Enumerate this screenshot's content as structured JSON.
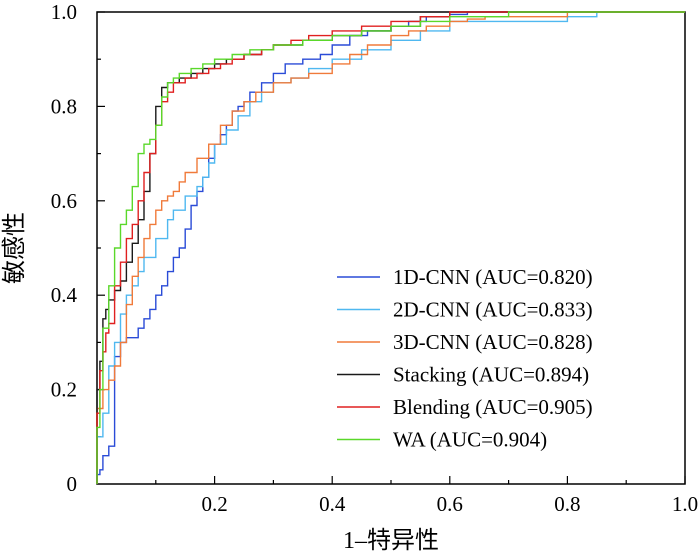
{
  "chart_data": {
    "type": "line",
    "title": "",
    "xlabel": "1–特异性",
    "ylabel": "敏感性",
    "xlim": [
      0,
      1
    ],
    "ylim": [
      0,
      1
    ],
    "x_ticks": [
      "0.2",
      "0.4",
      "0.6",
      "0.8",
      "1.0"
    ],
    "y_ticks": [
      "0",
      "0.2",
      "0.4",
      "0.6",
      "0.8",
      "1.0"
    ],
    "grid": false,
    "legend_position": "bottom-right",
    "series": [
      {
        "name": "1D-CNN (AUC=0.820)",
        "color": "#2a4bd7",
        "x": [
          0,
          0.005,
          0.01,
          0.01,
          0.02,
          0.03,
          0.03,
          0.04,
          0.05,
          0.06,
          0.07,
          0.08,
          0.09,
          0.1,
          0.11,
          0.12,
          0.13,
          0.14,
          0.15,
          0.16,
          0.17,
          0.18,
          0.19,
          0.2,
          0.21,
          0.22,
          0.23,
          0.24,
          0.25,
          0.26,
          0.28,
          0.3,
          0.32,
          0.35,
          0.38,
          0.4,
          0.43,
          0.46,
          0.5,
          0.53,
          0.56,
          0.6,
          0.63,
          0.66,
          0.7,
          0.8,
          0.9,
          1.0
        ],
        "y": [
          0,
          0.02,
          0.03,
          0.05,
          0.06,
          0.08,
          0.15,
          0.27,
          0.3,
          0.31,
          0.31,
          0.33,
          0.35,
          0.37,
          0.4,
          0.42,
          0.45,
          0.48,
          0.5,
          0.54,
          0.59,
          0.62,
          0.65,
          0.69,
          0.72,
          0.74,
          0.76,
          0.79,
          0.8,
          0.81,
          0.83,
          0.85,
          0.87,
          0.89,
          0.9,
          0.91,
          0.93,
          0.95,
          0.96,
          0.97,
          0.98,
          0.99,
          0.995,
          1.0,
          1.0,
          1.0,
          1.0,
          1.0
        ]
      },
      {
        "name": "2D-CNN (AUC=0.833)",
        "color": "#4fb8f0",
        "x": [
          0,
          0.01,
          0.02,
          0.03,
          0.04,
          0.05,
          0.06,
          0.07,
          0.08,
          0.1,
          0.12,
          0.13,
          0.15,
          0.17,
          0.18,
          0.19,
          0.2,
          0.22,
          0.24,
          0.26,
          0.28,
          0.3,
          0.33,
          0.36,
          0.4,
          0.45,
          0.5,
          0.55,
          0.6,
          0.7,
          0.8,
          0.85,
          0.9,
          1.0
        ],
        "y": [
          0,
          0.1,
          0.15,
          0.25,
          0.3,
          0.36,
          0.4,
          0.42,
          0.45,
          0.48,
          0.52,
          0.56,
          0.58,
          0.61,
          0.63,
          0.65,
          0.68,
          0.72,
          0.75,
          0.78,
          0.81,
          0.83,
          0.85,
          0.86,
          0.88,
          0.9,
          0.92,
          0.94,
          0.96,
          0.98,
          0.98,
          0.99,
          1.0,
          1.0
        ]
      },
      {
        "name": "3D-CNN (AUC=0.828)",
        "color": "#f07a3a",
        "x": [
          0,
          0.01,
          0.02,
          0.03,
          0.04,
          0.05,
          0.06,
          0.07,
          0.08,
          0.09,
          0.1,
          0.11,
          0.12,
          0.13,
          0.14,
          0.15,
          0.17,
          0.19,
          0.21,
          0.23,
          0.25,
          0.27,
          0.3,
          0.33,
          0.36,
          0.4,
          0.43,
          0.46,
          0.5,
          0.53,
          0.56,
          0.6,
          0.63,
          0.66,
          0.7,
          0.8,
          0.88,
          1.0
        ],
        "y": [
          0,
          0.16,
          0.2,
          0.22,
          0.25,
          0.3,
          0.38,
          0.44,
          0.48,
          0.52,
          0.55,
          0.58,
          0.6,
          0.61,
          0.62,
          0.64,
          0.66,
          0.69,
          0.72,
          0.76,
          0.79,
          0.81,
          0.83,
          0.85,
          0.86,
          0.87,
          0.89,
          0.91,
          0.93,
          0.95,
          0.96,
          0.97,
          0.98,
          0.985,
          0.99,
          0.99,
          1.0,
          1.0
        ]
      },
      {
        "name": "Stacking (AUC=0.894)",
        "color": "#1a1a1a",
        "x": [
          0,
          0.005,
          0.01,
          0.015,
          0.02,
          0.03,
          0.04,
          0.05,
          0.06,
          0.07,
          0.08,
          0.09,
          0.1,
          0.11,
          0.12,
          0.14,
          0.16,
          0.18,
          0.2,
          0.22,
          0.25,
          0.28,
          0.3,
          0.35,
          0.4,
          0.45,
          0.5,
          0.55,
          0.6,
          0.7,
          0.8,
          1.0
        ],
        "y": [
          0,
          0.2,
          0.26,
          0.35,
          0.37,
          0.39,
          0.41,
          0.43,
          0.47,
          0.51,
          0.56,
          0.62,
          0.7,
          0.8,
          0.84,
          0.85,
          0.86,
          0.87,
          0.88,
          0.89,
          0.9,
          0.91,
          0.92,
          0.93,
          0.94,
          0.95,
          0.96,
          0.97,
          0.99,
          1.0,
          1.0,
          1.0
        ]
      },
      {
        "name": "Blending (AUC=0.905)",
        "color": "#e02020",
        "x": [
          0,
          0.005,
          0.01,
          0.015,
          0.02,
          0.03,
          0.04,
          0.05,
          0.06,
          0.07,
          0.08,
          0.09,
          0.1,
          0.11,
          0.12,
          0.13,
          0.15,
          0.17,
          0.19,
          0.21,
          0.23,
          0.25,
          0.28,
          0.3,
          0.33,
          0.36,
          0.4,
          0.45,
          0.5,
          0.55,
          0.6,
          0.65,
          0.7,
          0.8,
          1.0
        ],
        "y": [
          0,
          0.15,
          0.24,
          0.28,
          0.32,
          0.34,
          0.42,
          0.47,
          0.52,
          0.55,
          0.6,
          0.66,
          0.7,
          0.76,
          0.81,
          0.83,
          0.85,
          0.86,
          0.87,
          0.88,
          0.89,
          0.9,
          0.91,
          0.92,
          0.93,
          0.94,
          0.95,
          0.96,
          0.97,
          0.98,
          0.99,
          1.0,
          1.0,
          1.0,
          1.0
        ]
      },
      {
        "name": "WA (AUC=0.904)",
        "color": "#5ad82a",
        "x": [
          0,
          0.005,
          0.01,
          0.02,
          0.03,
          0.04,
          0.05,
          0.06,
          0.07,
          0.08,
          0.09,
          0.1,
          0.11,
          0.12,
          0.13,
          0.14,
          0.16,
          0.18,
          0.2,
          0.23,
          0.26,
          0.3,
          0.35,
          0.4,
          0.45,
          0.5,
          0.55,
          0.6,
          0.7,
          0.8,
          1.0
        ],
        "y": [
          0,
          0.12,
          0.2,
          0.33,
          0.42,
          0.5,
          0.55,
          0.58,
          0.63,
          0.7,
          0.72,
          0.73,
          0.76,
          0.82,
          0.85,
          0.86,
          0.87,
          0.88,
          0.89,
          0.9,
          0.91,
          0.92,
          0.93,
          0.94,
          0.95,
          0.96,
          0.97,
          0.98,
          0.99,
          1.0,
          1.0
        ]
      }
    ]
  }
}
